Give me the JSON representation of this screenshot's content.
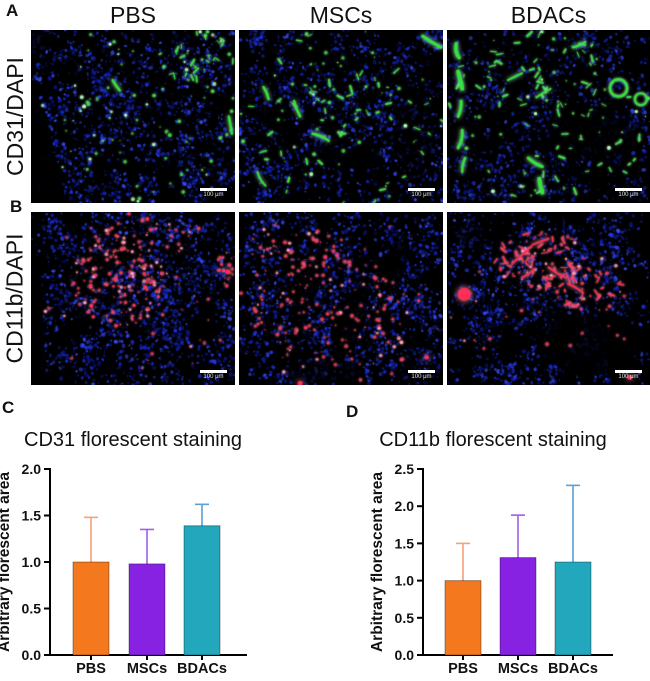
{
  "panel_letters": {
    "a": "A",
    "b": "B",
    "c": "C",
    "d": "D"
  },
  "microscopy": {
    "column_headers": [
      "PBS",
      "MSCs",
      "BDACs"
    ],
    "rows": [
      {
        "label": "CD31/DAPI",
        "marker": "CD31-green"
      },
      {
        "label": "CD11b/DAPI",
        "marker": "CD11b-red"
      }
    ],
    "scale_bar_label": "100 μm",
    "panels": [
      {
        "row": "CD31/DAPI",
        "col": "PBS",
        "seed": 11,
        "nuclei": 1500,
        "dim": 1,
        "marker_color": "#2fe63e",
        "marker_glow": "#b9ffc4",
        "wedge": [
          [
            0,
            0.28
          ],
          [
            0.08,
            0.52
          ],
          [
            0.17,
            1
          ],
          [
            0,
            1
          ]
        ],
        "voids": [
          [
            0.02,
            0.06,
            0.08,
            0.07,
            0,
            0.75
          ],
          [
            0.6,
            0.02,
            0.2,
            0.05,
            0,
            0.55
          ]
        ],
        "markers": [
          {
            "count": 60,
            "area": [
              0.5,
              0.5,
              0.52,
              0.52
            ]
          },
          {
            "count": 40,
            "area": [
              0.82,
              0.14,
              0.2,
              0.17
            ],
            "elong": true
          },
          {
            "count": 18,
            "area": [
              0.35,
              0.55,
              0.2,
              0.3
            ]
          }
        ],
        "vessels": [
          [
            0.4,
            0.29,
            0.435,
            0.35,
            2.5
          ],
          [
            0.97,
            0.5,
            0.985,
            0.6,
            2.5
          ]
        ]
      },
      {
        "row": "CD31/DAPI",
        "col": "MSCs",
        "seed": 23,
        "nuclei": 1450,
        "dim": 1,
        "marker_color": "#2fe63e",
        "marker_glow": "#b9ffc4",
        "voids": [
          [
            0.42,
            0.16,
            0.2,
            0.055,
            0.25,
            0.85
          ],
          [
            0.17,
            0.53,
            0.14,
            0.05,
            0.5,
            0.8
          ],
          [
            0.52,
            0.74,
            0.2,
            0.06,
            0.1,
            0.85
          ],
          [
            0.86,
            0.6,
            0.1,
            0.25,
            0,
            0.55
          ]
        ],
        "markers": [
          {
            "count": 75,
            "area": [
              0.5,
              0.5,
              0.52,
              0.52
            ],
            "elong": true
          },
          {
            "count": 30,
            "area": [
              0.52,
              0.38,
              0.3,
              0.22
            ],
            "elong": true
          }
        ],
        "vessels": [
          [
            0.9,
            0.035,
            0.99,
            0.1,
            3
          ],
          [
            0.27,
            0.41,
            0.3,
            0.5,
            2.5
          ],
          [
            0.36,
            0.6,
            0.44,
            0.64,
            2.5
          ],
          [
            0.09,
            0.82,
            0.13,
            0.9,
            2
          ],
          [
            0.12,
            0.33,
            0.145,
            0.4,
            2.5
          ]
        ]
      },
      {
        "row": "CD31/DAPI",
        "col": "BDACs",
        "seed": 35,
        "nuclei": 1150,
        "dim": 0.85,
        "marker_color": "#2fe63e",
        "marker_glow": "#b9ffc4",
        "voids": [
          [
            0.72,
            0.6,
            0.22,
            0.13,
            0.2,
            0.78
          ],
          [
            0.33,
            0.09,
            0.16,
            0.06,
            0,
            0.6
          ]
        ],
        "markers": [
          {
            "count": 85,
            "area": [
              0.5,
              0.5,
              0.52,
              0.52
            ],
            "elong": true
          },
          {
            "count": 35,
            "area": [
              0.5,
              0.3,
              0.33,
              0.22
            ],
            "elong": true
          }
        ],
        "vessels": [
          [
            0.045,
            0.08,
            0.06,
            0.16,
            3.5
          ],
          [
            0.055,
            0.24,
            0.075,
            0.34,
            4
          ],
          [
            0.07,
            0.41,
            0.055,
            0.5,
            3
          ],
          [
            0.075,
            0.58,
            0.055,
            0.68,
            3
          ],
          [
            0.09,
            0.74,
            0.075,
            0.82,
            2.5
          ],
          [
            0.3,
            0.29,
            0.37,
            0.25,
            2
          ],
          [
            0.44,
            0.39,
            0.51,
            0.34,
            2
          ],
          [
            0.4,
            0.74,
            0.47,
            0.79,
            3
          ],
          [
            0.455,
            0.86,
            0.47,
            0.94,
            4
          ],
          [
            0.62,
            0.1,
            0.68,
            0.07,
            2.5
          ]
        ],
        "rings": [
          [
            0.845,
            0.335,
            0.05,
            2.5
          ],
          [
            0.955,
            0.4,
            0.035,
            2
          ]
        ]
      },
      {
        "row": "CD11b/DAPI",
        "col": "PBS",
        "seed": 47,
        "nuclei": 1650,
        "dim": 1,
        "marker_color": "#ff2e55",
        "marker_glow": "#ff9db6",
        "wedge": [
          [
            0,
            0.14
          ],
          [
            0.05,
            0.4
          ],
          [
            0.075,
            1
          ],
          [
            0,
            1
          ]
        ],
        "markers": [
          {
            "count": 150,
            "area": [
              0.43,
              0.4,
              0.24,
              0.26
            ]
          },
          {
            "count": 45,
            "area": [
              0.58,
              0.16,
              0.3,
              0.13
            ]
          },
          {
            "count": 35,
            "area": [
              0.5,
              0.5,
              0.52,
              0.52
            ]
          },
          {
            "count": 18,
            "area": [
              0.95,
              0.33,
              0.05,
              0.1
            ]
          }
        ],
        "blobs": [
          [
            0.965,
            0.345,
            2.5
          ],
          [
            0.57,
            0.04,
            2
          ]
        ]
      },
      {
        "row": "CD11b/DAPI",
        "col": "MSCs",
        "seed": 59,
        "nuclei": 1500,
        "dim": 1,
        "marker_color": "#ff2e55",
        "marker_glow": "#ff9db6",
        "voids": [
          [
            0.34,
            0.42,
            0.055,
            0.22,
            0.35,
            0.88
          ],
          [
            0.56,
            0.62,
            0.05,
            0.24,
            0.3,
            0.82
          ],
          [
            0.77,
            0.28,
            0.05,
            0.18,
            0.3,
            0.6
          ],
          [
            0.42,
            0.92,
            0.2,
            0.07,
            0,
            0.65
          ]
        ],
        "markers": [
          {
            "count": 140,
            "area": [
              0.46,
              0.58,
              0.4,
              0.34
            ]
          },
          {
            "count": 55,
            "area": [
              0.28,
              0.22,
              0.24,
              0.16
            ]
          },
          {
            "count": 30,
            "area": [
              0.5,
              0.5,
              0.52,
              0.52
            ]
          }
        ],
        "blobs": [
          [
            0.92,
            0.84,
            2.2
          ],
          [
            0.3,
            0.99,
            2.5
          ]
        ]
      },
      {
        "row": "CD11b/DAPI",
        "col": "BDACs",
        "seed": 71,
        "nuclei": 1350,
        "dim": 1,
        "marker_color": "#ff2e55",
        "marker_glow": "#ff9db6",
        "voids": [
          [
            0.7,
            0.77,
            0.26,
            0.17,
            0.1,
            0.85
          ],
          [
            0.14,
            0.14,
            0.12,
            0.08,
            0,
            0.5
          ]
        ],
        "markers": [
          {
            "count": 95,
            "area": [
              0.46,
              0.27,
              0.23,
              0.17
            ],
            "elong": true
          },
          {
            "count": 50,
            "area": [
              0.66,
              0.43,
              0.2,
              0.12
            ],
            "elong": true
          },
          {
            "count": 32,
            "area": [
              0.5,
              0.55,
              0.5,
              0.42
            ]
          }
        ],
        "vessels": [
          [
            0.32,
            0.3,
            0.4,
            0.22,
            2
          ],
          [
            0.42,
            0.19,
            0.5,
            0.155,
            2
          ],
          [
            0.5,
            0.32,
            0.575,
            0.375,
            2
          ],
          [
            0.595,
            0.415,
            0.67,
            0.465,
            2
          ],
          [
            0.37,
            0.38,
            0.43,
            0.33,
            2
          ]
        ],
        "blobs": [
          [
            0.085,
            0.475,
            6.5
          ],
          [
            0.9,
            0.955,
            2.5
          ]
        ]
      }
    ]
  },
  "chart_data": [
    {
      "type": "bar",
      "title": "CD31 florescent staining",
      "xlabel": "",
      "ylabel": "Arbitrary florescent area",
      "categories": [
        "PBS",
        "MSCs",
        "BDACs"
      ],
      "values": [
        1.0,
        0.98,
        1.39
      ],
      "errors": [
        0.48,
        0.37,
        0.23
      ],
      "ylim": [
        0,
        2.0
      ],
      "ytick_step": 0.5,
      "grid": false,
      "legend": "none",
      "bar_colors": [
        "#F4781E",
        "#8722E2",
        "#22A7BC"
      ],
      "error_colors": [
        "#F6A078",
        "#A05FE6",
        "#5AA0D7"
      ]
    },
    {
      "type": "bar",
      "title": "CD11b florescent staining",
      "xlabel": "",
      "ylabel": "Arbitrary florescent area",
      "categories": [
        "PBS",
        "MSCs",
        "BDACs"
      ],
      "values": [
        1.0,
        1.31,
        1.25
      ],
      "errors": [
        0.5,
        0.57,
        1.03
      ],
      "ylim": [
        0,
        2.5
      ],
      "ytick_step": 0.5,
      "grid": false,
      "legend": "none",
      "bar_colors": [
        "#F4781E",
        "#8722E2",
        "#22A7BC"
      ],
      "error_colors": [
        "#F6A078",
        "#A05FE6",
        "#5AA0D7"
      ]
    }
  ]
}
